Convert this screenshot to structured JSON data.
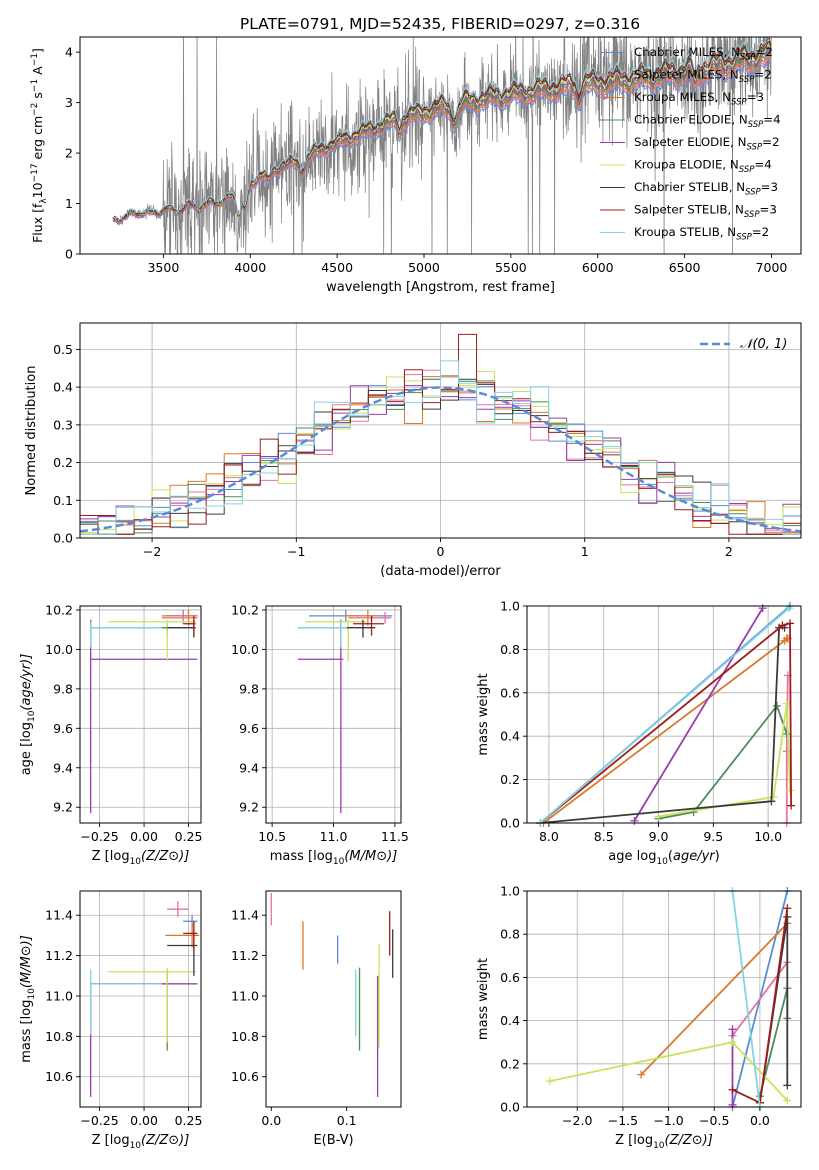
{
  "title": "PLATE=0791, MJD=52435, FIBERID=0297, z=0.316",
  "colors": {
    "Chabrier MILES": "#5b8bd6",
    "Salpeter MILES": "#e8739e",
    "Kroupa MILES": "#d97a2b",
    "Chabrier ELODIE": "#4f8a5a",
    "Salpeter ELODIE": "#9a3cb0",
    "Kroupa ELODIE": "#c8e35a",
    "Chabrier STELIB": "#3a3a3a",
    "Salpeter STELIB": "#a01c1c",
    "Kroupa STELIB": "#82d4e0",
    "data": "#808080",
    "normal": "#5b8bd6"
  },
  "chart_data": [
    {
      "id": "spectrum",
      "type": "line",
      "xlabel": "wavelength [Angstrom, rest frame]",
      "ylabel": "Flux [f_λ 10^-17 erg cm^-2 s^-1 A^-1]",
      "xlim": [
        3020,
        7170
      ],
      "ylim": [
        0,
        4.3
      ],
      "xticks": [
        3500,
        4000,
        4500,
        5000,
        5500,
        6000,
        6500,
        7000
      ],
      "yticks": [
        0,
        1,
        2,
        3,
        4
      ],
      "grid": false,
      "legend": "top-right",
      "legend_entries": [
        {
          "model": "Chabrier MILES",
          "text": "Chabrier MILES, N",
          "n": 2
        },
        {
          "model": "Salpeter MILES",
          "text": "Salpeter MILES, N",
          "n": 2
        },
        {
          "model": "Kroupa MILES",
          "text": "Kroupa MILES, N",
          "n": 3
        },
        {
          "model": "Chabrier ELODIE",
          "text": "Chabrier ELODIE, N",
          "n": 4
        },
        {
          "model": "Salpeter ELODIE",
          "text": "Salpeter ELODIE, N",
          "n": 2
        },
        {
          "model": "Kroupa ELODIE",
          "text": "Kroupa ELODIE, N",
          "n": 4
        },
        {
          "model": "Chabrier STELIB",
          "text": "Chabrier STELIB, N",
          "n": 3
        },
        {
          "model": "Salpeter STELIB",
          "text": "Salpeter STELIB, N",
          "n": 3
        },
        {
          "model": "Kroupa STELIB",
          "text": "Kroupa STELIB, N",
          "n": 2
        }
      ],
      "legend_subscript": "SSP",
      "data_range": [
        3210,
        7000
      ],
      "continuum_points": [
        [
          3210,
          0.7
        ],
        [
          3300,
          0.85
        ],
        [
          3450,
          0.9
        ],
        [
          3650,
          1.0
        ],
        [
          3800,
          1.1
        ],
        [
          3950,
          1.3
        ],
        [
          4100,
          1.6
        ],
        [
          4300,
          1.9
        ],
        [
          4500,
          2.2
        ],
        [
          4800,
          2.6
        ],
        [
          5100,
          2.9
        ],
        [
          5400,
          3.1
        ],
        [
          5800,
          3.3
        ],
        [
          6200,
          3.45
        ],
        [
          6600,
          3.65
        ],
        [
          7000,
          3.95
        ]
      ]
    },
    {
      "id": "residual_hist",
      "type": "histogram",
      "xlabel": "(data-model)/error",
      "ylabel": "Normed distribution",
      "xlim": [
        -2.5,
        2.5
      ],
      "ylim": [
        0,
        0.57
      ],
      "xticks": [
        -2,
        -1,
        0,
        1,
        2
      ],
      "yticks": [
        0.0,
        0.1,
        0.2,
        0.3,
        0.4,
        0.5
      ],
      "grid": true,
      "legend": "top-right",
      "legend_label": "𝒩(0, 1)",
      "bins": 40,
      "peak_bar": {
        "x": 0.15,
        "value": 0.54,
        "model": "Salpeter STELIB"
      }
    },
    {
      "id": "age_vs_Z",
      "type": "errorbar",
      "xlabel": "Z [log10(Z/Z⊙)]",
      "ylabel": "age [log10(age/yr)]",
      "xlim": [
        -0.36,
        0.32
      ],
      "ylim": [
        9.12,
        10.22
      ],
      "xticks": [
        -0.25,
        0.0,
        0.25
      ],
      "yticks": [
        9.2,
        9.4,
        9.6,
        9.8,
        10.0,
        10.2
      ],
      "grid": true,
      "points": [
        {
          "model": "Chabrier MILES",
          "x": 0.22,
          "xerr": [
            0.1,
            0.08
          ],
          "y": 10.17,
          "yerr": [
            0.03,
            0.03
          ]
        },
        {
          "model": "Salpeter MILES",
          "x": 0.22,
          "xerr": [
            0.12,
            0.08
          ],
          "y": 10.16,
          "yerr": [
            0.03,
            0.03
          ]
        },
        {
          "model": "Kroupa MILES",
          "x": 0.25,
          "xerr": [
            0.15,
            0.05
          ],
          "y": 10.17,
          "yerr": [
            0.05,
            0.03
          ]
        },
        {
          "model": "Chabrier ELODIE",
          "x": 0.13,
          "xerr": [
            0.43,
            0.16
          ],
          "y": 10.11,
          "yerr": [
            0.03,
            0.02
          ]
        },
        {
          "model": "Salpeter ELODIE",
          "x": -0.3,
          "xerr": [
            0.0,
            0.6
          ],
          "y": 9.95,
          "yerr": [
            0.78,
            0.2
          ]
        },
        {
          "model": "Kroupa ELODIE",
          "x": 0.13,
          "xerr": [
            0.33,
            0.16
          ],
          "y": 10.14,
          "yerr": [
            0.2,
            0.01
          ]
        },
        {
          "model": "Chabrier STELIB",
          "x": 0.28,
          "xerr": [
            0.15,
            0.01
          ],
          "y": 10.11,
          "yerr": [
            0.05,
            0.04
          ]
        },
        {
          "model": "Salpeter STELIB",
          "x": 0.28,
          "xerr": [
            0.06,
            0.01
          ],
          "y": 10.13,
          "yerr": [
            0.06,
            0.04
          ]
        },
        {
          "model": "Kroupa STELIB",
          "x": -0.3,
          "xerr": [
            0.0,
            0.4
          ],
          "y": 10.11,
          "yerr": [
            0.1,
            0.03
          ]
        }
      ]
    },
    {
      "id": "age_vs_mass",
      "type": "errorbar",
      "xlabel": "mass [log10(M/M⊙)]",
      "ylabel": "",
      "xlim": [
        10.45,
        11.55
      ],
      "ylim": [
        9.12,
        10.22
      ],
      "xticks": [
        10.5,
        11.0,
        11.5
      ],
      "yticks": [
        9.2,
        9.4,
        9.6,
        9.8,
        10.0,
        10.2
      ],
      "grid": true,
      "points": [
        {
          "model": "Chabrier MILES",
          "x": 11.1,
          "xerr": [
            0.3,
            0.38
          ],
          "y": 10.17,
          "yerr": [
            0.03,
            0.03
          ]
        },
        {
          "model": "Salpeter MILES",
          "x": 11.42,
          "xerr": [
            0.3,
            0.05
          ],
          "y": 10.16,
          "yerr": [
            0.03,
            0.03
          ]
        },
        {
          "model": "Kroupa MILES",
          "x": 11.28,
          "xerr": [
            0.2,
            0.1
          ],
          "y": 10.17,
          "yerr": [
            0.05,
            0.03
          ]
        },
        {
          "model": "Chabrier ELODIE",
          "x": 11.06,
          "xerr": [
            0.35,
            0.05
          ],
          "y": 10.11,
          "yerr": [
            0.03,
            0.02
          ]
        },
        {
          "model": "Salpeter ELODIE",
          "x": 11.06,
          "xerr": [
            0.35,
            0.02
          ],
          "y": 9.95,
          "yerr": [
            0.78,
            0.2
          ]
        },
        {
          "model": "Kroupa ELODIE",
          "x": 11.12,
          "xerr": [
            0.35,
            0.15
          ],
          "y": 10.14,
          "yerr": [
            0.2,
            0.01
          ]
        },
        {
          "model": "Chabrier STELIB",
          "x": 11.24,
          "xerr": [
            0.15,
            0.1
          ],
          "y": 10.11,
          "yerr": [
            0.05,
            0.04
          ]
        },
        {
          "model": "Salpeter STELIB",
          "x": 11.31,
          "xerr": [
            0.15,
            0.1
          ],
          "y": 10.13,
          "yerr": [
            0.06,
            0.04
          ]
        },
        {
          "model": "Kroupa STELIB",
          "x": 11.06,
          "xerr": [
            0.35,
            0.05
          ],
          "y": 10.11,
          "yerr": [
            0.1,
            0.03
          ]
        }
      ]
    },
    {
      "id": "mass_vs_Z",
      "type": "errorbar",
      "xlabel": "Z [log10(Z/Z⊙)]",
      "ylabel": "mass [log10(M/M⊙)]",
      "xlim": [
        -0.36,
        0.32
      ],
      "ylim": [
        10.45,
        11.52
      ],
      "xticks": [
        -0.25,
        0.0,
        0.25
      ],
      "yticks": [
        10.6,
        10.8,
        11.0,
        11.2,
        11.4
      ],
      "grid": true,
      "points": [
        {
          "model": "Chabrier MILES",
          "x": 0.27,
          "xerr": [
            0.05,
            0.03
          ],
          "y": 11.37,
          "yerr": [
            0.03,
            0.03
          ]
        },
        {
          "model": "Salpeter MILES",
          "x": 0.19,
          "xerr": [
            0.06,
            0.06
          ],
          "y": 11.43,
          "yerr": [
            0.04,
            0.04
          ]
        },
        {
          "model": "Kroupa MILES",
          "x": 0.27,
          "xerr": [
            0.15,
            0.04
          ],
          "y": 11.3,
          "yerr": [
            0.06,
            0.06
          ]
        },
        {
          "model": "Chabrier ELODIE",
          "x": 0.13,
          "xerr": [
            0.43,
            0.16
          ],
          "y": 11.06,
          "yerr": [
            0.33,
            0.07
          ]
        },
        {
          "model": "Salpeter ELODIE",
          "x": -0.3,
          "xerr": [
            0.0,
            0.6
          ],
          "y": 11.06,
          "yerr": [
            0.56,
            0.0
          ]
        },
        {
          "model": "Kroupa ELODIE",
          "x": 0.13,
          "xerr": [
            0.33,
            0.16
          ],
          "y": 11.12,
          "yerr": [
            0.35,
            0.02
          ]
        },
        {
          "model": "Chabrier STELIB",
          "x": 0.28,
          "xerr": [
            0.15,
            0.02
          ],
          "y": 11.25,
          "yerr": [
            0.15,
            0.08
          ]
        },
        {
          "model": "Salpeter STELIB",
          "x": 0.28,
          "xerr": [
            0.06,
            0.02
          ],
          "y": 11.31,
          "yerr": [
            0.08,
            0.06
          ]
        },
        {
          "model": "Kroupa STELIB",
          "x": -0.3,
          "xerr": [
            0.0,
            0.4
          ],
          "y": 11.06,
          "yerr": [
            0.25,
            0.07
          ]
        }
      ]
    },
    {
      "id": "mass_vs_EBV",
      "type": "errorbar",
      "xlabel": "E(B-V)",
      "ylabel": "",
      "xlim": [
        -0.007,
        0.172
      ],
      "ylim": [
        10.45,
        11.52
      ],
      "xticks": [
        0.0,
        0.1
      ],
      "yticks": [
        10.6,
        10.8,
        11.0,
        11.2,
        11.4
      ],
      "grid": false,
      "points": [
        {
          "model": "Salpeter MILES",
          "x": 0.0,
          "y": 11.43,
          "yerr": [
            0.08,
            0.08
          ]
        },
        {
          "model": "Kroupa MILES",
          "x": 0.042,
          "y": 11.25,
          "yerr": [
            0.12,
            0.12
          ]
        },
        {
          "model": "Chabrier MILES",
          "x": 0.088,
          "y": 11.23,
          "yerr": [
            0.07,
            0.07
          ]
        },
        {
          "model": "Kroupa STELIB",
          "x": 0.112,
          "y": 11.0,
          "yerr": [
            0.2,
            0.13
          ]
        },
        {
          "model": "Chabrier ELODIE",
          "x": 0.117,
          "y": 10.93,
          "yerr": [
            0.2,
            0.21
          ]
        },
        {
          "model": "Salpeter ELODIE",
          "x": 0.141,
          "y": 10.9,
          "yerr": [
            0.4,
            0.2
          ]
        },
        {
          "model": "Kroupa ELODIE",
          "x": 0.143,
          "y": 11.0,
          "yerr": [
            0.26,
            0.26
          ]
        },
        {
          "model": "Salpeter STELIB",
          "x": 0.157,
          "y": 11.31,
          "yerr": [
            0.11,
            0.11
          ]
        },
        {
          "model": "Chabrier STELIB",
          "x": 0.161,
          "y": 11.21,
          "yerr": [
            0.12,
            0.12
          ]
        }
      ]
    },
    {
      "id": "weight_vs_age",
      "type": "line",
      "xlabel": "age (log10(age/yr))",
      "ylabel": "mass weight",
      "xlim": [
        7.8,
        10.3
      ],
      "ylim": [
        0.0,
        1.0
      ],
      "xticks": [
        8.0,
        8.5,
        9.0,
        9.5,
        10.0
      ],
      "yticks": [
        0.0,
        0.2,
        0.4,
        0.6,
        0.8,
        1.0
      ],
      "grid": true,
      "series": [
        {
          "model": "Chabrier MILES",
          "x": [
            7.92,
            10.2
          ],
          "y": [
            0.0,
            1.0
          ]
        },
        {
          "model": "Salpeter MILES",
          "x": [
            10.17,
            10.17,
            10.18
          ],
          "y": [
            0.0,
            0.33,
            0.68
          ]
        },
        {
          "model": "Kroupa MILES",
          "x": [
            7.95,
            10.15,
            10.17,
            10.18
          ],
          "y": [
            0.0,
            0.84,
            0.85,
            0.85
          ]
        },
        {
          "model": "Chabrier ELODIE",
          "x": [
            9.0,
            9.32,
            10.08,
            10.17
          ],
          "y": [
            0.02,
            0.05,
            0.54,
            0.41
          ]
        },
        {
          "model": "Salpeter ELODIE",
          "x": [
            8.78,
            9.95
          ],
          "y": [
            0.01,
            0.99
          ]
        },
        {
          "model": "Kroupa ELODIE",
          "x": [
            9.0,
            10.05,
            10.17,
            10.2
          ],
          "y": [
            0.03,
            0.12,
            0.55,
            0.15
          ]
        },
        {
          "model": "Chabrier STELIB",
          "x": [
            7.92,
            10.03,
            10.1,
            10.15
          ],
          "y": [
            0.0,
            0.1,
            0.9,
            0.9
          ]
        },
        {
          "model": "Salpeter STELIB",
          "x": [
            7.92,
            10.13,
            10.2,
            10.21
          ],
          "y": [
            0.0,
            0.91,
            0.92,
            0.08
          ]
        },
        {
          "model": "Kroupa STELIB",
          "x": [
            7.92,
            10.19
          ],
          "y": [
            0.0,
            0.99
          ]
        }
      ]
    },
    {
      "id": "weight_vs_Z",
      "type": "line",
      "xlabel": "Z [log10(Z/Z⊙)]",
      "ylabel": "mass weight",
      "xlim": [
        -2.55,
        0.45
      ],
      "ylim": [
        0.0,
        1.0
      ],
      "xticks": [
        -2.0,
        -1.5,
        -1.0,
        -0.5,
        0.0
      ],
      "yticks": [
        0.0,
        0.2,
        0.4,
        0.6,
        0.8,
        1.0
      ],
      "grid": true,
      "series": [
        {
          "model": "Chabrier MILES",
          "x": [
            -0.3,
            0.3
          ],
          "y": [
            0.0,
            1.0
          ]
        },
        {
          "model": "Salpeter MILES",
          "x": [
            -0.3,
            0.3
          ],
          "y": [
            0.33,
            0.67
          ]
        },
        {
          "model": "Kroupa MILES",
          "x": [
            -1.3,
            0.3
          ],
          "y": [
            0.15,
            0.85
          ]
        },
        {
          "model": "Chabrier ELODIE",
          "x": [
            0.0,
            0.3,
            0.3
          ],
          "y": [
            0.05,
            0.55,
            0.41
          ]
        },
        {
          "model": "Salpeter ELODIE",
          "x": [
            -0.3,
            -0.3
          ],
          "y": [
            0.01,
            0.36
          ]
        },
        {
          "model": "Kroupa ELODIE",
          "x": [
            -2.3,
            -0.3,
            0.3
          ],
          "y": [
            0.12,
            0.3,
            0.03
          ]
        },
        {
          "model": "Chabrier STELIB",
          "x": [
            0.0,
            0.3,
            0.3
          ],
          "y": [
            0.02,
            0.88,
            0.1
          ]
        },
        {
          "model": "Salpeter STELIB",
          "x": [
            -0.3,
            0.0,
            0.3
          ],
          "y": [
            0.08,
            0.02,
            0.92
          ]
        },
        {
          "model": "Kroupa STELIB",
          "x": [
            -0.3,
            0.0
          ],
          "y": [
            1.0,
            0.0
          ]
        }
      ]
    }
  ]
}
